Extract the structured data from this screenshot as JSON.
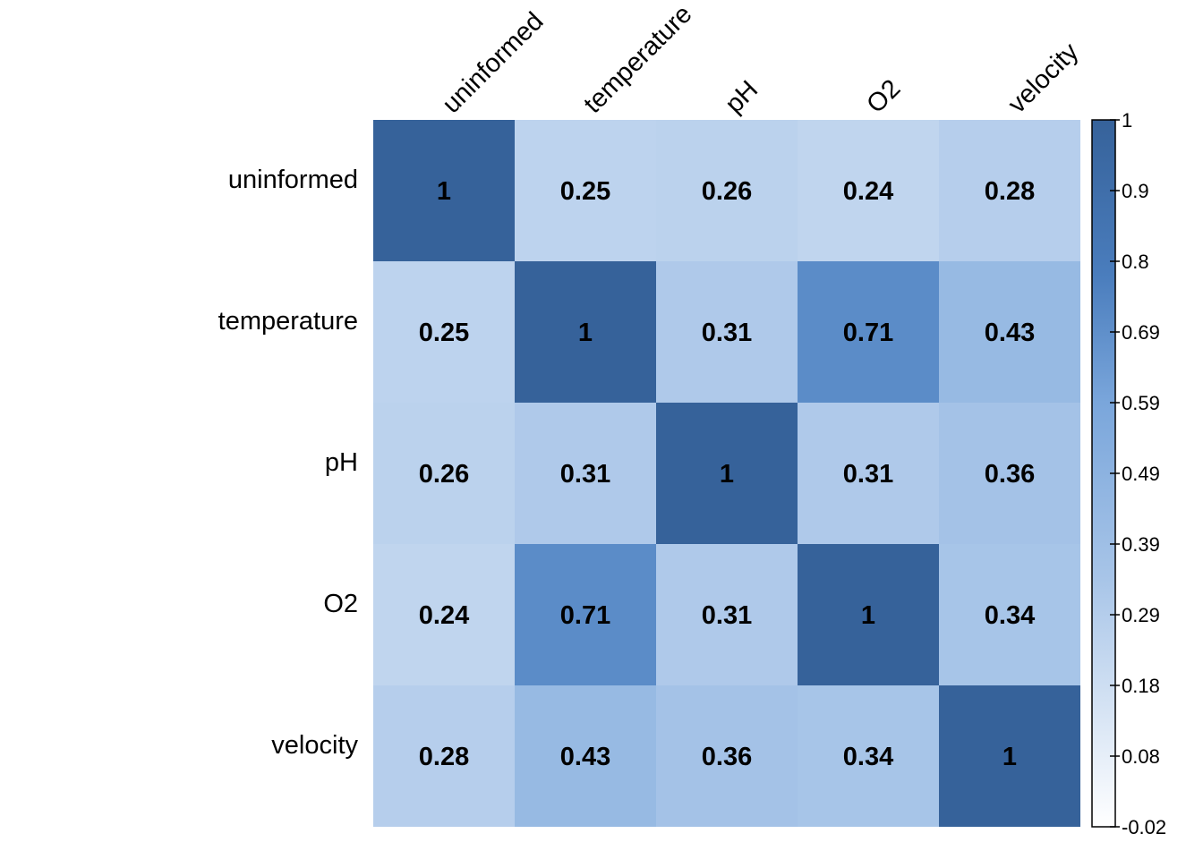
{
  "chart_data": {
    "type": "heatmap",
    "variables": [
      "uninformed",
      "temperature",
      "pH",
      "O2",
      "velocity"
    ],
    "matrix": [
      [
        1,
        0.25,
        0.26,
        0.24,
        0.28
      ],
      [
        0.25,
        1,
        0.31,
        0.71,
        0.43
      ],
      [
        0.26,
        0.31,
        1,
        0.31,
        0.36
      ],
      [
        0.24,
        0.71,
        0.31,
        1,
        0.34
      ],
      [
        0.28,
        0.43,
        0.36,
        0.34,
        1
      ]
    ],
    "cell_labels": [
      [
        "1",
        "0.25",
        "0.26",
        "0.24",
        "0.28"
      ],
      [
        "0.25",
        "1",
        "0.31",
        "0.71",
        "0.43"
      ],
      [
        "0.26",
        "0.31",
        "1",
        "0.31",
        "0.36"
      ],
      [
        "0.24",
        "0.71",
        "0.31",
        "1",
        "0.34"
      ],
      [
        "0.28",
        "0.43",
        "0.36",
        "0.34",
        "1"
      ]
    ],
    "colorbar": {
      "min": -0.02,
      "max": 1,
      "ticks": [
        "1",
        "0.9",
        "0.8",
        "0.69",
        "0.59",
        "0.49",
        "0.39",
        "0.29",
        "0.18",
        "0.08",
        "-0.02"
      ],
      "colors": [
        "#ffffff",
        "#a8c5e8",
        "#7aa6db",
        "#4a7dbd",
        "#36629a"
      ]
    },
    "legend_placement": "right",
    "grid": false
  }
}
